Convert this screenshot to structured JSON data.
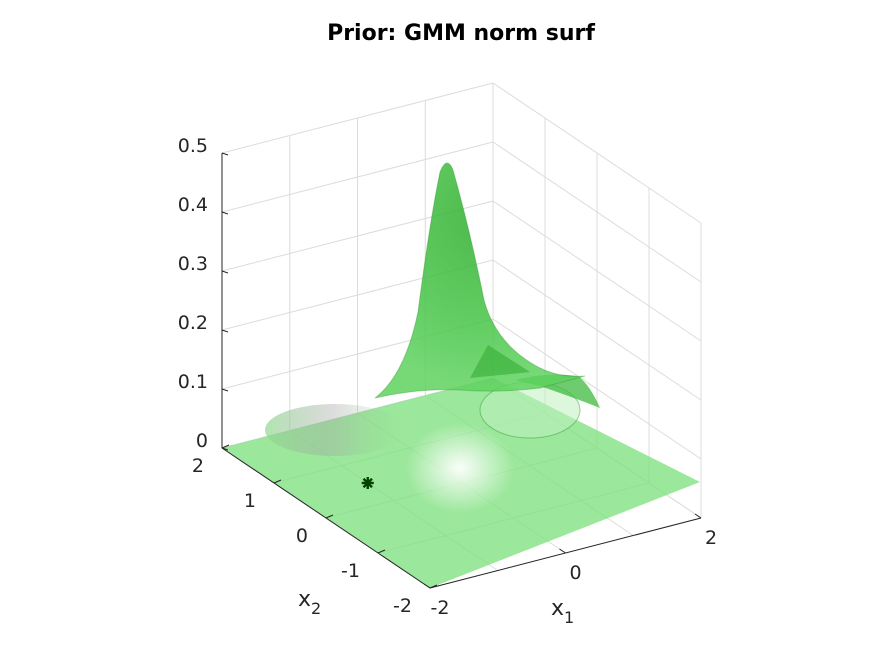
{
  "chart_data": {
    "type": "surface",
    "title": "Prior: GMM norm surf",
    "xlabel": "x",
    "xlabel_sub": "1",
    "ylabel": "x",
    "ylabel_sub": "2",
    "zlabel": "",
    "xlim": [
      -2,
      2
    ],
    "ylim": [
      -2,
      2
    ],
    "zlim": [
      0,
      0.5
    ],
    "x_ticks": [
      "-2",
      "0",
      "2"
    ],
    "y_ticks": [
      "-2",
      "-1",
      "0",
      "1",
      "2"
    ],
    "z_ticks": [
      "0",
      "0.1",
      "0.2",
      "0.3",
      "0.4",
      "0.5"
    ],
    "grid": true,
    "surface_color": "#33cc33",
    "surface_opacity": 0.5,
    "peak": {
      "x": 0.5,
      "y": 1.0,
      "z": 0.49
    },
    "marker": {
      "x": -1.0,
      "y": 0.5,
      "z": 0.0,
      "color": "#004400",
      "symbol": "asterisk"
    }
  }
}
